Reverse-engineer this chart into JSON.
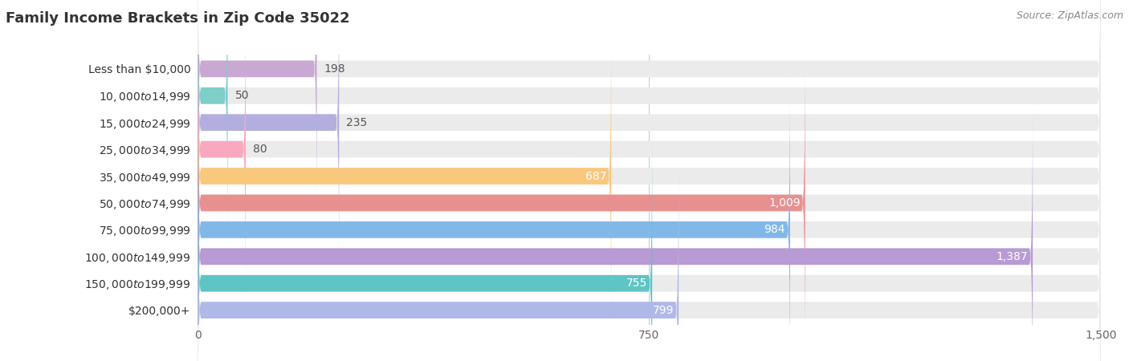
{
  "title": "Family Income Brackets in Zip Code 35022",
  "source": "Source: ZipAtlas.com",
  "categories": [
    "Less than $10,000",
    "$10,000 to $14,999",
    "$15,000 to $24,999",
    "$25,000 to $34,999",
    "$35,000 to $49,999",
    "$50,000 to $74,999",
    "$75,000 to $99,999",
    "$100,000 to $149,999",
    "$150,000 to $199,999",
    "$200,000+"
  ],
  "values": [
    198,
    50,
    235,
    80,
    687,
    1009,
    984,
    1387,
    755,
    799
  ],
  "colors": [
    "#c9a8d4",
    "#7ececa",
    "#b3aee0",
    "#f9a8c0",
    "#f9c87c",
    "#e89090",
    "#82b8e8",
    "#b89ad4",
    "#5ec4c4",
    "#b0b8e8"
  ],
  "xlim": [
    0,
    1500
  ],
  "xticks": [
    0,
    750,
    1500
  ],
  "value_threshold": 300,
  "bar_bg_color": "#ebebeb",
  "title_fontsize": 13,
  "label_fontsize": 10,
  "value_fontsize": 10,
  "source_fontsize": 9,
  "tick_fontsize": 10
}
